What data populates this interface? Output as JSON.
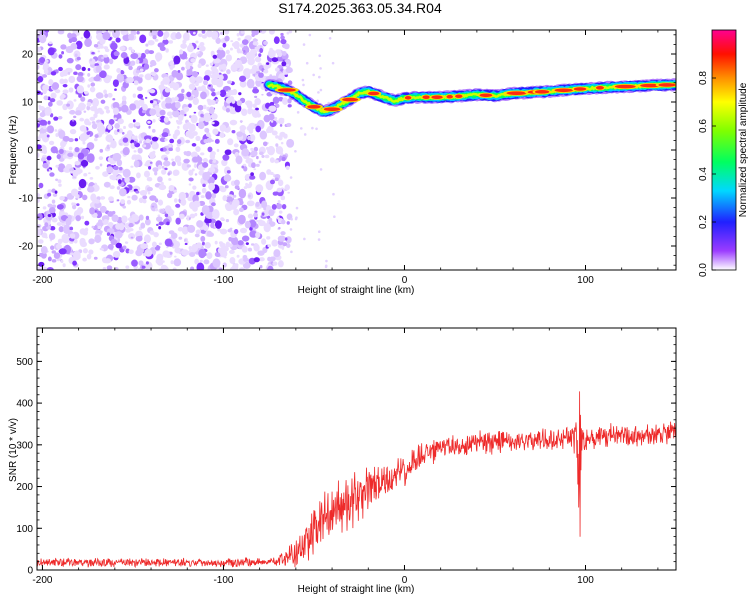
{
  "title": "S174.2025.363.05.34.R04",
  "colors": {
    "snr_line": "#ee2a2a",
    "scatter_points": "#7b2bff",
    "axis": "#000000"
  },
  "chart_data": [
    {
      "type": "heatmap",
      "name": "spectrogram",
      "xlabel": "Height of straight line (km)",
      "ylabel": "Frequency (Hz)",
      "xlim": [
        -203,
        150
      ],
      "ylim": [
        -25,
        25
      ],
      "xticks": [
        -200,
        -100,
        0,
        100
      ],
      "yticks": [
        -20,
        -10,
        0,
        10,
        20
      ],
      "noise_region_x": [
        -203,
        -63
      ],
      "signal_track": {
        "x": [
          -75,
          -70,
          -65,
          -60,
          -55,
          -50,
          -45,
          -40,
          -35,
          -30,
          -25,
          -20,
          -15,
          -10,
          -5,
          0,
          5,
          10,
          20,
          30,
          40,
          50,
          60,
          70,
          80,
          90,
          100,
          110,
          120,
          130,
          140,
          150
        ],
        "frequency": [
          13.5,
          13.2,
          12.5,
          11.5,
          10.2,
          9.0,
          8.0,
          8.5,
          9.5,
          10.5,
          11.8,
          12.2,
          11.5,
          10.8,
          10.2,
          10.8,
          11.0,
          11.0,
          11.0,
          11.2,
          11.5,
          11.3,
          11.8,
          12.0,
          12.2,
          12.5,
          12.8,
          13.0,
          13.2,
          13.3,
          13.5,
          13.6
        ]
      },
      "colorbar": {
        "label": "Normalized spectral amplitude",
        "range": [
          0,
          1
        ],
        "ticks": [
          "0.0",
          "0.2",
          "0.4",
          "0.6",
          "0.8"
        ]
      }
    },
    {
      "type": "line",
      "name": "snr",
      "xlabel": "Height of straight line (km)",
      "ylabel": "SNR (10 * v/v)",
      "xlim": [
        -203,
        150
      ],
      "ylim": [
        0,
        580
      ],
      "xticks": [
        -200,
        -100,
        0,
        100
      ],
      "yticks": [
        0,
        100,
        200,
        300,
        400,
        500
      ],
      "series": [
        {
          "x": [
            -203,
            -150,
            -100,
            -70,
            -60,
            -50,
            -40,
            -30,
            -20,
            -10,
            0,
            10,
            20,
            30,
            40,
            50,
            60,
            70,
            80,
            90,
            95,
            97,
            98,
            100,
            110,
            120,
            130,
            140,
            150
          ],
          "y": [
            18,
            18,
            18,
            20,
            40,
            90,
            140,
            160,
            190,
            210,
            240,
            275,
            290,
            300,
            305,
            305,
            310,
            310,
            315,
            320,
            320,
            300,
            320,
            315,
            320,
            320,
            320,
            325,
            330
          ],
          "noise_amplitude": [
            12,
            12,
            12,
            14,
            45,
            70,
            80,
            75,
            60,
            55,
            45,
            40,
            35,
            32,
            32,
            32,
            32,
            32,
            32,
            32,
            50,
            280,
            60,
            32,
            32,
            32,
            32,
            32,
            32
          ]
        }
      ]
    }
  ]
}
